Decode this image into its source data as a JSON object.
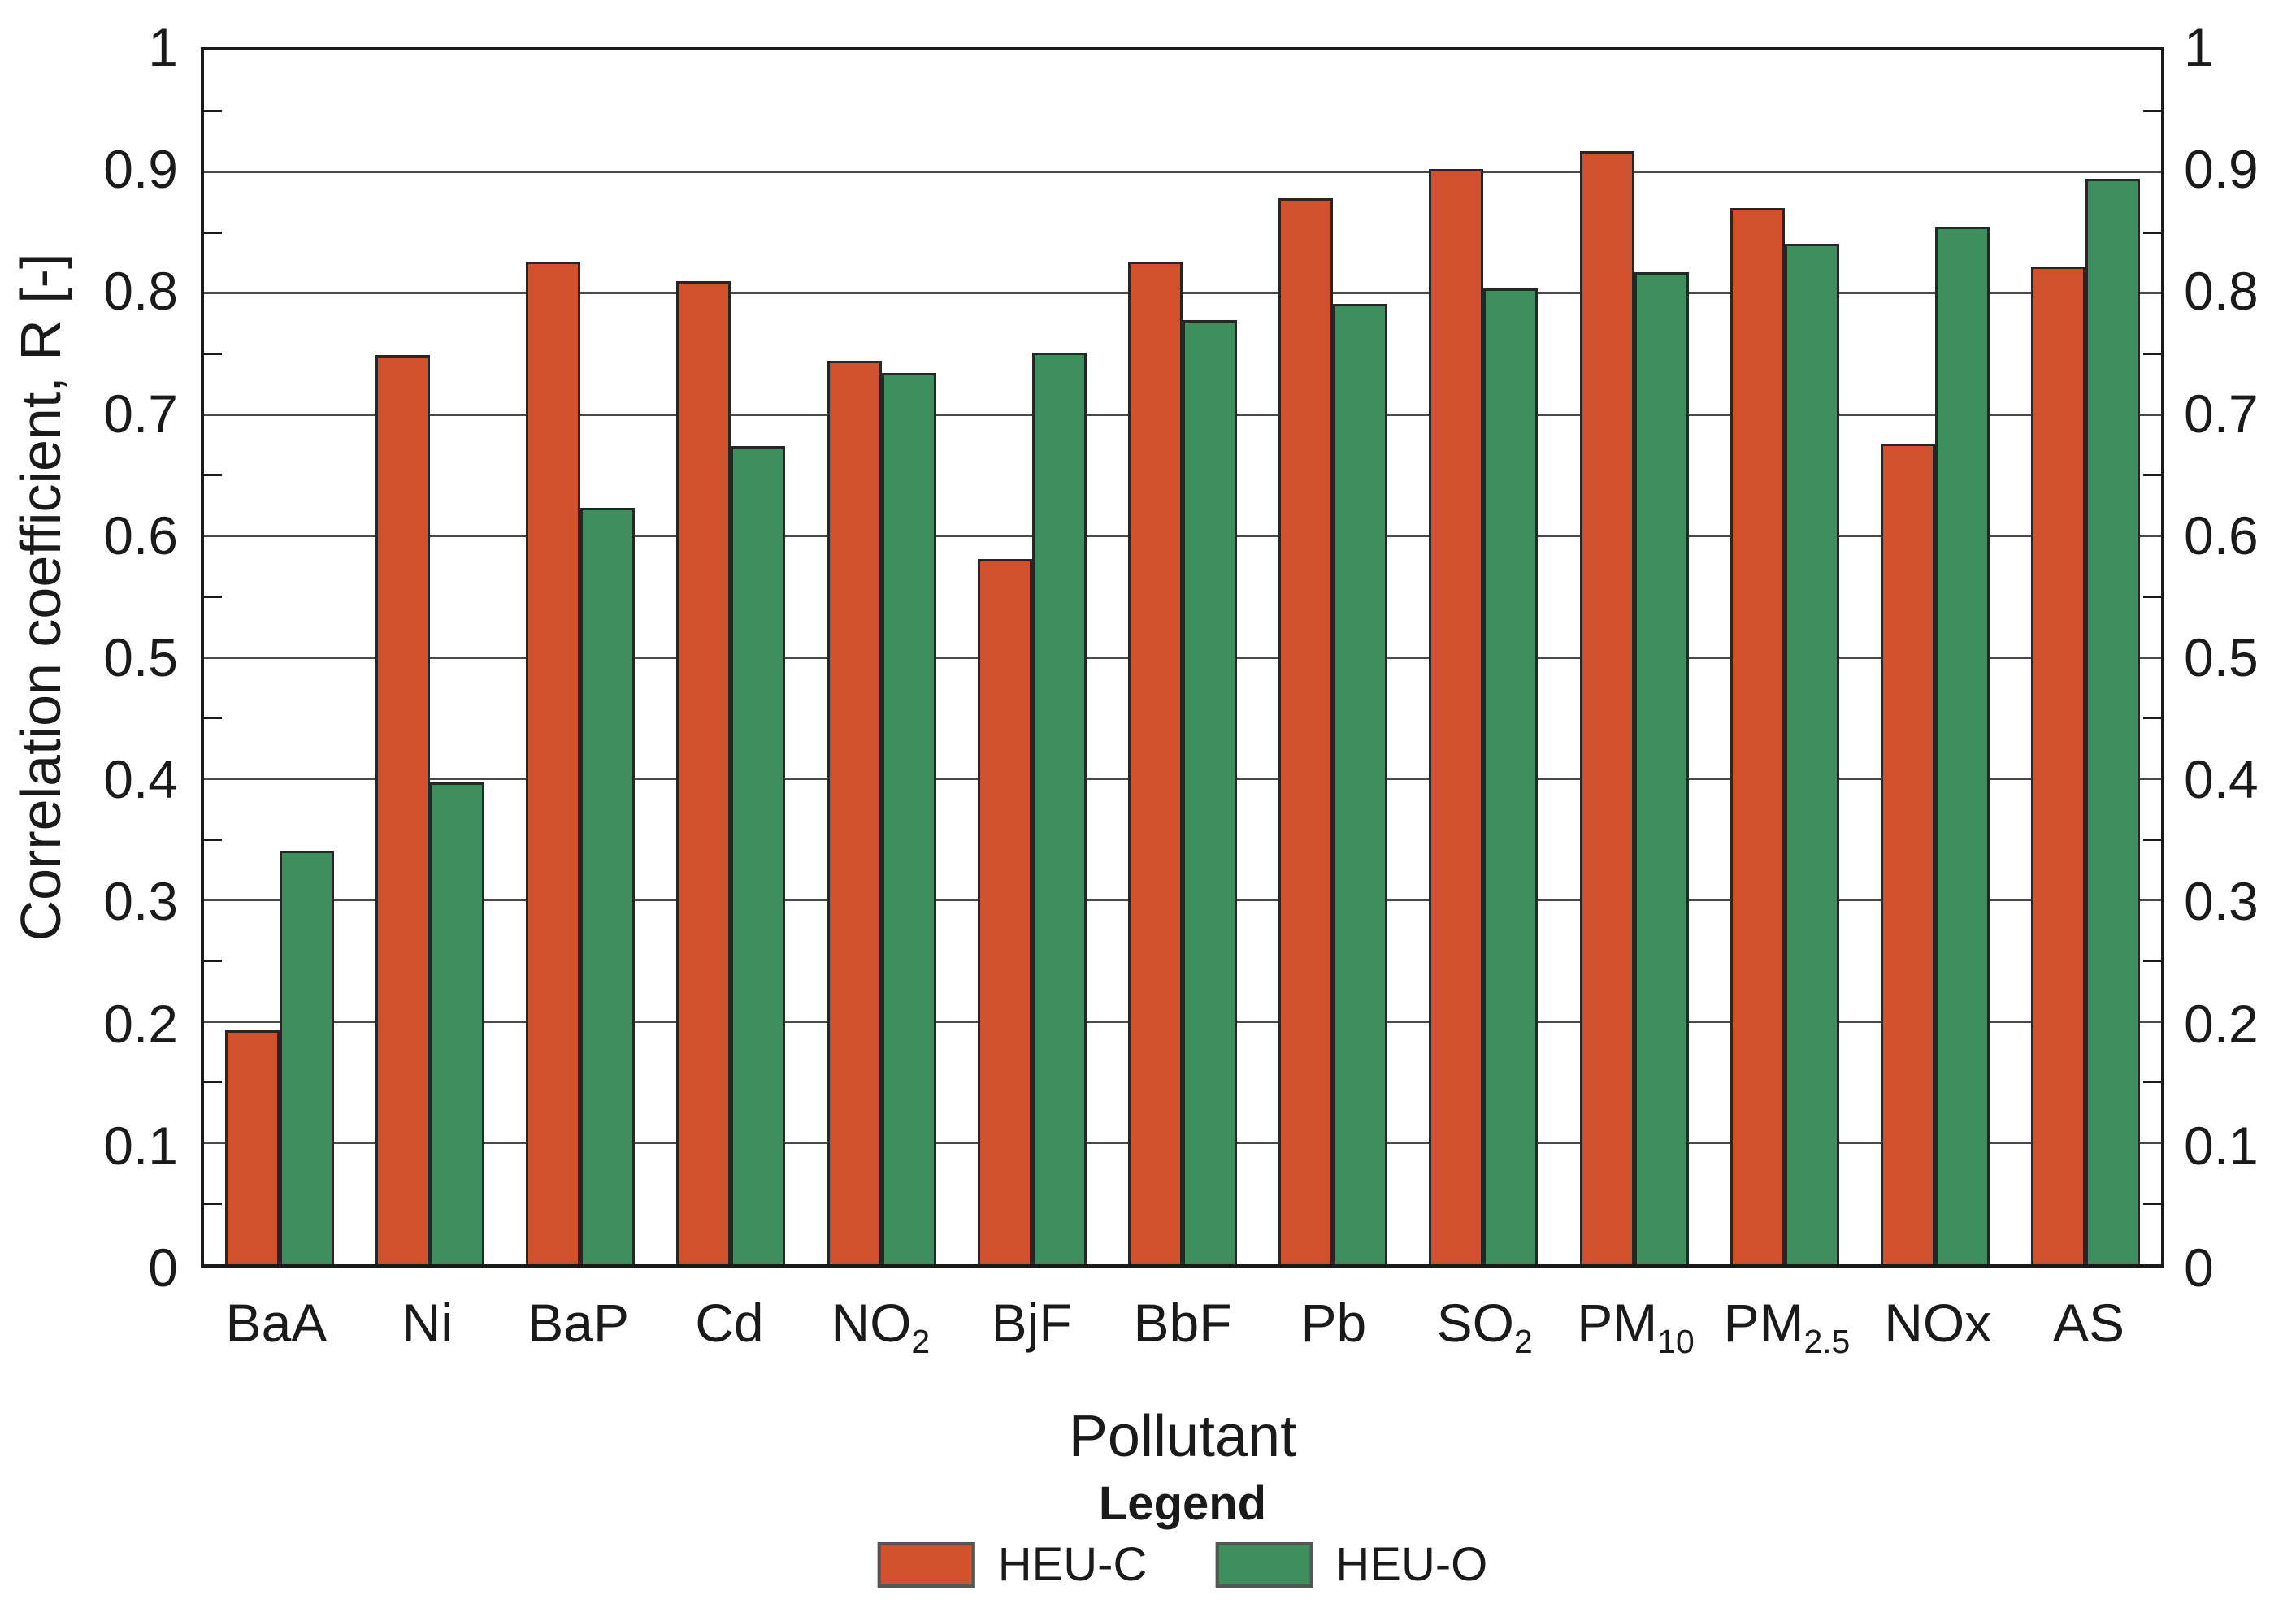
{
  "chart_data": {
    "type": "bar",
    "title": "",
    "xlabel": "Pollutant",
    "ylabel": "Correlation coefficient, R [-]",
    "ylim": [
      0,
      1
    ],
    "ytick_step": 0.1,
    "ytick_labels": [
      "1",
      "0.9",
      "0.8",
      "0.7",
      "0.6",
      "0.5",
      "0.4",
      "0.3",
      "0.2",
      "0.1",
      "0"
    ],
    "y_axes": "identical tick labels on left and right sides",
    "grid": "horizontal gridlines at every 0.1, minor ticks at every 0.05",
    "legend_title": "Legend",
    "legend_position": "bottom-center",
    "categories": [
      {
        "base": "BaA",
        "sub": ""
      },
      {
        "base": "Ni",
        "sub": ""
      },
      {
        "base": "BaP",
        "sub": ""
      },
      {
        "base": "Cd",
        "sub": ""
      },
      {
        "base": "NO",
        "sub": "2"
      },
      {
        "base": "BjF",
        "sub": ""
      },
      {
        "base": "BbF",
        "sub": ""
      },
      {
        "base": "Pb",
        "sub": ""
      },
      {
        "base": "SO",
        "sub": "2"
      },
      {
        "base": "PM",
        "sub": "10"
      },
      {
        "base": "PM",
        "sub": "2.5"
      },
      {
        "base": "NOx",
        "sub": ""
      },
      {
        "base": "AS",
        "sub": ""
      }
    ],
    "series": [
      {
        "name": "HEU-C",
        "color": "#D0512B",
        "values": [
          0.193,
          0.749,
          0.826,
          0.81,
          0.744,
          0.581,
          0.826,
          0.878,
          0.902,
          0.917,
          0.87,
          0.676,
          0.822
        ]
      },
      {
        "name": "HEU-O",
        "color": "#3F8E5E",
        "values": [
          0.341,
          0.397,
          0.623,
          0.674,
          0.734,
          0.751,
          0.778,
          0.791,
          0.804,
          0.817,
          0.841,
          0.855,
          0.894
        ]
      }
    ]
  },
  "styles": {
    "background": "#ffffff",
    "bar_border": "#262626",
    "gridline_color": "#4a4a4a",
    "axis_frame_color": "#1a1a1a",
    "text_color": "#1a1a1a"
  }
}
